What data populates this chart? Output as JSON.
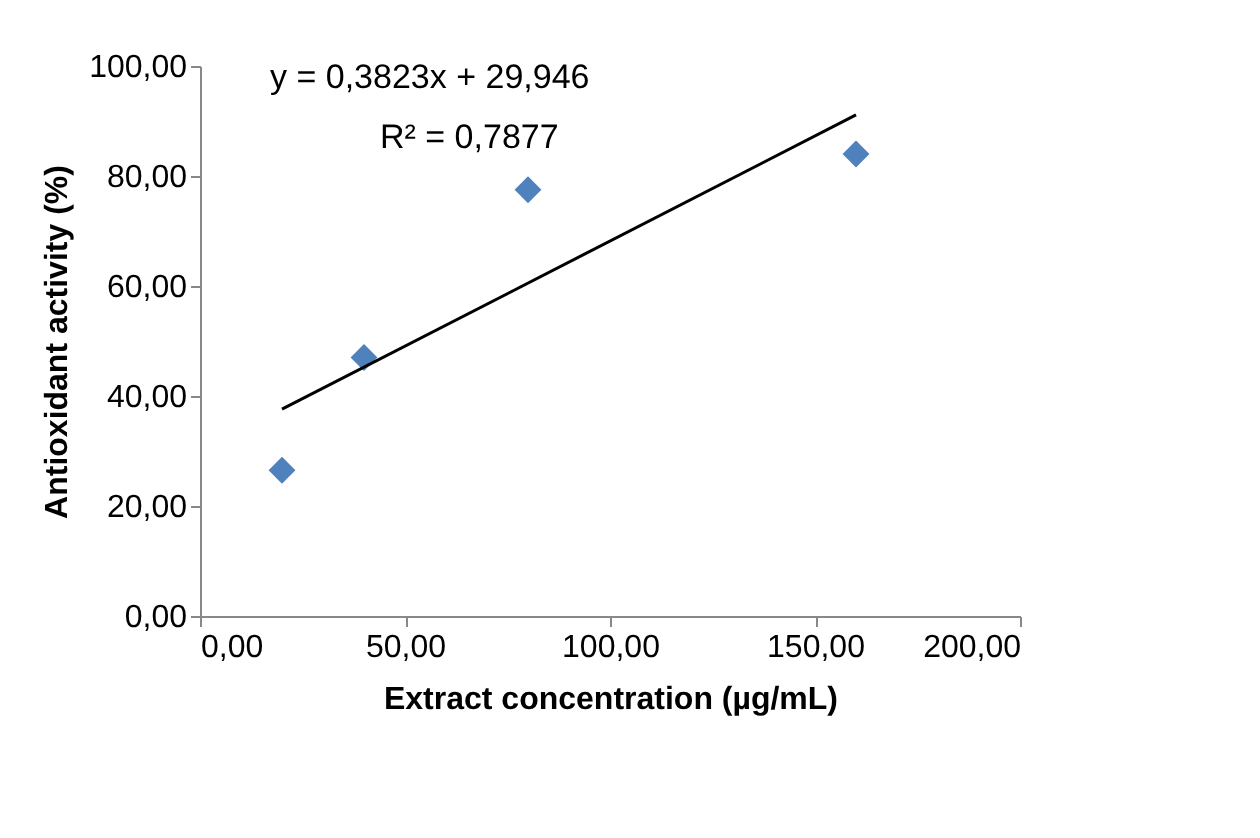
{
  "chart_data": {
    "type": "scatter",
    "xlabel": "Extract concentration (µg/mL)",
    "ylabel": "Antioxidant activity (%)",
    "annotations": [
      "y = 0,3823x + 29,946",
      "R² = 0,7877"
    ],
    "series": [
      {
        "type": "scatter",
        "color": "#4f81bd",
        "marker": "diamond",
        "x": [
          20,
          40,
          80,
          160
        ],
        "values": [
          26.5,
          47,
          77.5,
          84
        ]
      },
      {
        "type": "line",
        "color": "#000000",
        "line_style": "solid",
        "x": [
          20,
          160
        ],
        "values": [
          37.6,
          91.1
        ]
      }
    ],
    "xlim": [
      0,
      200
    ],
    "xticks": [
      {
        "value": 0,
        "label": "0,00"
      },
      {
        "value": 50,
        "label": "50,00"
      },
      {
        "value": 100,
        "label": "100,00"
      },
      {
        "value": 150,
        "label": "150,00"
      },
      {
        "value": 200,
        "label": "200,00"
      }
    ],
    "ylim": [
      0,
      100
    ],
    "yticks": [
      {
        "value": 0,
        "label": "0,00"
      },
      {
        "value": 20,
        "label": "20,00"
      },
      {
        "value": 40,
        "label": "40,00"
      },
      {
        "value": 60,
        "label": "60,00"
      },
      {
        "value": 80,
        "label": "80,00"
      },
      {
        "value": 100,
        "label": "100,00"
      }
    ],
    "grid": false
  }
}
